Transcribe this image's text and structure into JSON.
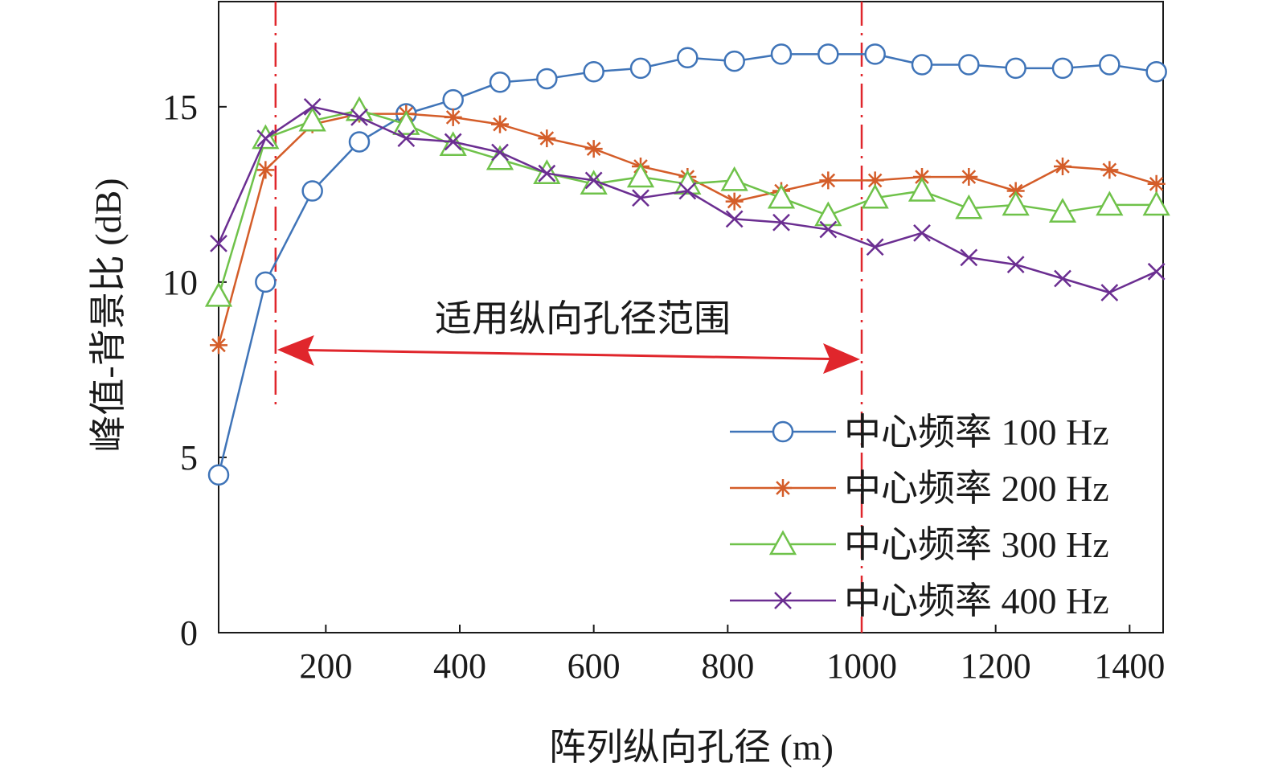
{
  "chart_data": {
    "type": "line",
    "title": "",
    "xlabel": "阵列纵向孔径 (m)",
    "ylabel": "峰值-背景比 (dB)",
    "xlim": [
      40,
      1450
    ],
    "ylim": [
      0,
      18
    ],
    "xticks": [
      200,
      400,
      600,
      800,
      1000,
      1200,
      1400
    ],
    "yticks": [
      0,
      5,
      10,
      15
    ],
    "grid": false,
    "legend_position": "bottom-right",
    "x": [
      40,
      110,
      180,
      250,
      320,
      390,
      460,
      530,
      600,
      670,
      740,
      810,
      880,
      950,
      1020,
      1090,
      1160,
      1230,
      1300,
      1370,
      1440
    ],
    "series": [
      {
        "name": "中心频率 100 Hz",
        "color": "#3f74b8",
        "marker": "circle",
        "values": [
          4.5,
          10.0,
          12.6,
          14.0,
          14.8,
          15.2,
          15.7,
          15.8,
          16.0,
          16.1,
          16.4,
          16.3,
          16.5,
          16.5,
          16.5,
          16.2,
          16.2,
          16.1,
          16.1,
          16.2,
          16.0
        ]
      },
      {
        "name": "中心频率 200 Hz",
        "color": "#d45d29",
        "marker": "asterisk",
        "values": [
          8.2,
          13.2,
          14.5,
          14.8,
          14.8,
          14.7,
          14.5,
          14.1,
          13.8,
          13.3,
          13.0,
          12.3,
          12.6,
          12.9,
          12.9,
          13.0,
          13.0,
          12.6,
          13.3,
          13.2,
          12.8
        ]
      },
      {
        "name": "中心频率 300 Hz",
        "color": "#6fc24a",
        "marker": "triangle",
        "values": [
          9.6,
          14.1,
          14.6,
          14.9,
          14.5,
          13.9,
          13.5,
          13.1,
          12.8,
          13.0,
          12.8,
          12.9,
          12.4,
          11.9,
          12.4,
          12.6,
          12.1,
          12.2,
          12.0,
          12.2,
          12.2
        ]
      },
      {
        "name": "中心频率 400 Hz",
        "color": "#6b2e91",
        "marker": "x",
        "values": [
          11.1,
          14.1,
          15.0,
          14.7,
          14.1,
          14.0,
          13.7,
          13.1,
          12.9,
          12.4,
          12.6,
          11.8,
          11.7,
          11.5,
          11.0,
          11.4,
          10.7,
          10.5,
          10.1,
          9.7,
          10.3
        ]
      }
    ],
    "annotations": {
      "range_label": "适用纵向孔径范围",
      "range_start": 125,
      "range_end": 1000,
      "range_color": "#e0262c"
    }
  }
}
